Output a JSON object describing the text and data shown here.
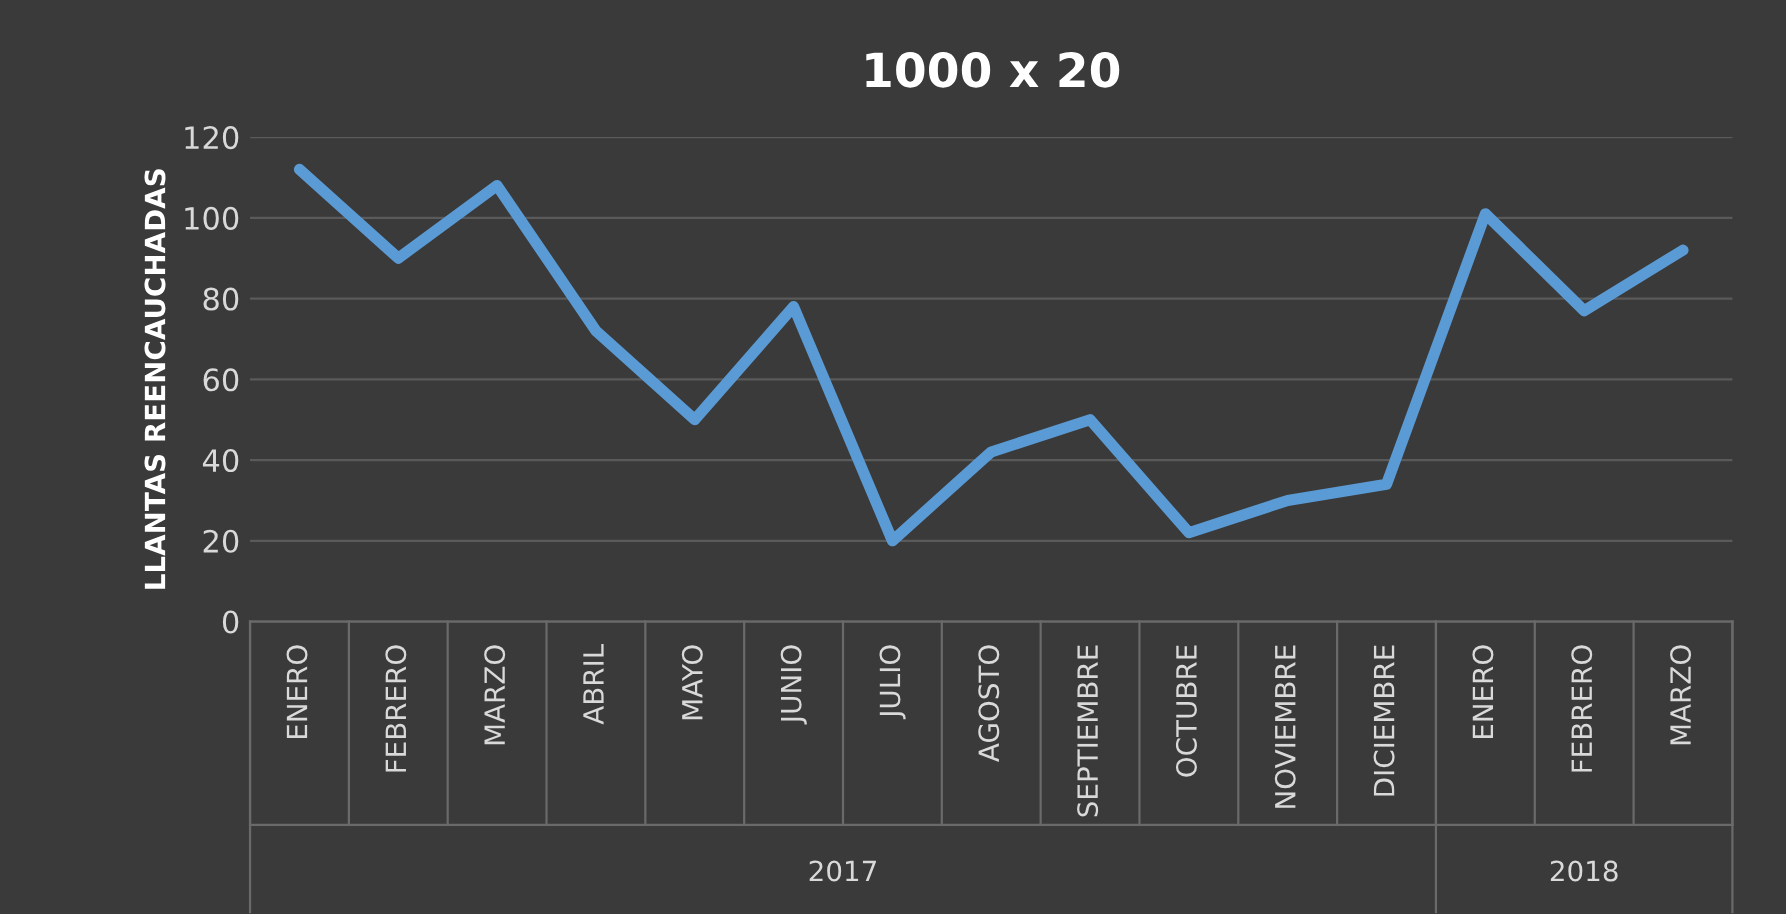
{
  "chart_data": {
    "type": "line",
    "title": "1000 x 20",
    "ylabel": "LLANTAS REENCAUCHADAS",
    "categories": [
      "ENERO",
      "FEBRERO",
      "MARZO",
      "ABRIL",
      "MAYO",
      "JUNIO",
      "JULIO",
      "AGOSTO",
      "SEPTIEMBRE",
      "OCTUBRE",
      "NOVIEMBRE",
      "DICIEMBRE",
      "ENERO",
      "FEBRERO",
      "MARZO"
    ],
    "series": [
      {
        "color": "#5b9bd5",
        "values": [
          112,
          90,
          108,
          72,
          50,
          78,
          20,
          42,
          50,
          22,
          30,
          34,
          101,
          77,
          92
        ]
      }
    ],
    "annotations": [
      "2017",
      "2018"
    ],
    "ylim": [
      0,
      120
    ],
    "yticks": [
      0,
      20,
      40,
      60,
      80,
      100,
      120
    ],
    "grid": "y",
    "legend": false
  }
}
